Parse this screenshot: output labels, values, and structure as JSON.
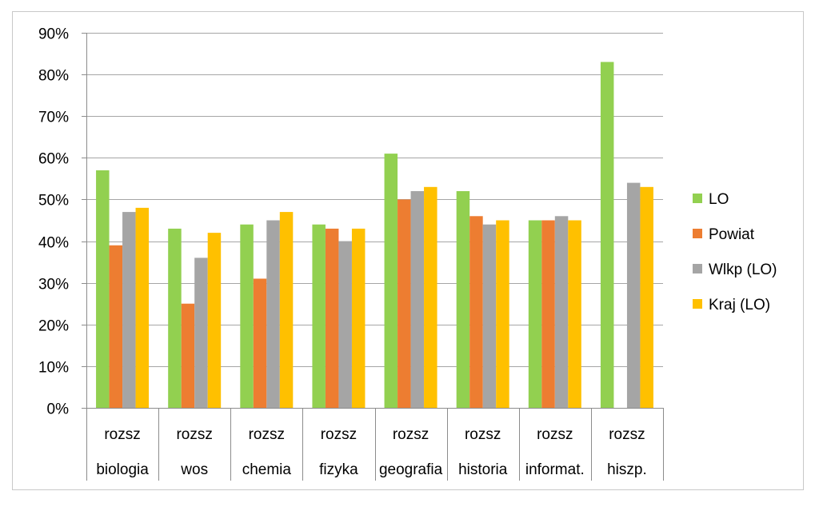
{
  "chart_data": {
    "type": "bar",
    "title": "",
    "xlabel": "",
    "ylabel": "",
    "ylim": [
      0,
      0.9
    ],
    "ytick_step": 0.1,
    "ytick_labels": [
      "0%",
      "10%",
      "20%",
      "30%",
      "40%",
      "50%",
      "60%",
      "70%",
      "80%",
      "90%"
    ],
    "grid": true,
    "legend_position": "right",
    "categories": [
      {
        "line1": "rozsz",
        "line2": "biologia"
      },
      {
        "line1": "rozsz",
        "line2": "wos"
      },
      {
        "line1": "rozsz",
        "line2": "chemia"
      },
      {
        "line1": "rozsz",
        "line2": "fizyka"
      },
      {
        "line1": "rozsz",
        "line2": "geografia"
      },
      {
        "line1": "rozsz",
        "line2": "historia"
      },
      {
        "line1": "rozsz",
        "line2": "informat."
      },
      {
        "line1": "rozsz",
        "line2": "hiszp."
      }
    ],
    "series": [
      {
        "name": "LO",
        "color": "#92d050",
        "values": [
          0.57,
          0.43,
          0.44,
          0.44,
          0.61,
          0.52,
          0.45,
          0.83
        ]
      },
      {
        "name": "Powiat",
        "color": "#ed7d31",
        "values": [
          0.39,
          0.25,
          0.31,
          0.43,
          0.5,
          0.46,
          0.45,
          null
        ]
      },
      {
        "name": "Wlkp (LO)",
        "color": "#a5a5a5",
        "values": [
          0.47,
          0.36,
          0.45,
          0.4,
          0.52,
          0.44,
          0.46,
          0.54
        ]
      },
      {
        "name": "Kraj (LO)",
        "color": "#ffc000",
        "values": [
          0.48,
          0.42,
          0.47,
          0.43,
          0.53,
          0.45,
          0.45,
          0.53
        ]
      }
    ]
  }
}
